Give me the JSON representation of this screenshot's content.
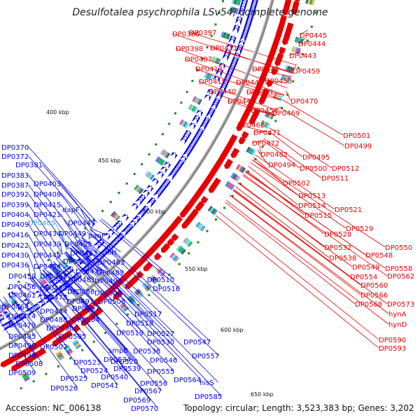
{
  "title": "Desulfotalea psychrophila LSv54, complete genome",
  "accession": "Accession: NC_006138",
  "summary": "Topology: circular; Length: 3,523,383 bp; Genes: 3,202",
  "colors": {
    "forward": "#e60000",
    "reverse": "#0000e6",
    "highlight": "#33aadd",
    "backbone": "#8a8a8a",
    "tick": "#1a8a1a"
  },
  "scale_marks": [
    "400 kbp",
    "450 kbp",
    "500 kbp",
    "550 kbp",
    "600 kbp",
    "650 kbp"
  ],
  "forward_labels": [
    "DP0386",
    "DP0397",
    "DP0398",
    "DP0411",
    "DP0407",
    "DP0417",
    "DP0418",
    "DP0440",
    "DP0445",
    "DP0444",
    "DP0443",
    "DP0442",
    "DP0459",
    "DP0441",
    "DP0453",
    "DP0451",
    "DP0446",
    "DP0470",
    "DP0458",
    "DP0469",
    "DP0462",
    "DP0471",
    "DP0472",
    "DP0482",
    "DP0501",
    "DP0499",
    "DP0495",
    "DP0494",
    "DP0500",
    "DP0512",
    "DP0511",
    "DP0502",
    "DP0513",
    "DP0514",
    "DP0521",
    "DP0515",
    "DP0529",
    "DP0528",
    "DP0550",
    "DP0532",
    "DP0548",
    "DP0538",
    "DP0549",
    "DP0558",
    "DP0554",
    "DP0562",
    "DP0560",
    "DP0566",
    "DP0568",
    "DP0573",
    "hynA",
    "hynD",
    "DP0590",
    "DP0593"
  ],
  "reverse_labels": [
    "DP0370",
    "DP0372",
    "DP0381",
    "DP0383",
    "DP0387",
    "DP0403",
    "DP0392",
    "DP0408",
    "DP0399",
    "DP0415",
    "dapF",
    "DP0404",
    "DP0421",
    "DP0409",
    "DP0405",
    "DP0447",
    "DP0416",
    "DP0434",
    "DP0449",
    "panF",
    "DP0422",
    "DP0439",
    "DP0455",
    "DP0430",
    "DP0448",
    "DP0463",
    "thiH",
    "DP0436",
    "DP0454",
    "DP0468",
    "DP0483",
    "DP0450",
    "DP0465",
    "DP0477",
    "DP0489",
    "DP0456",
    "DP0481",
    "DP0493",
    "DP0461",
    "DP0473",
    "DP0486",
    "DP0503",
    "DP0510",
    "DP0478",
    "DP0491",
    "DP0506",
    "DP0516",
    "DP0464",
    "DP0497",
    "DP0484",
    "DP0474",
    "DP0488",
    "DP0504",
    "DP0479",
    "DP0496",
    "DP0517",
    "DP0518",
    "DP0485",
    "DP0505",
    "DP0519",
    "DP0527",
    "DP0490",
    "DP0530",
    "DP0507",
    "smpB",
    "DP0536",
    "DP0498",
    "DP0547",
    "DP0508",
    "DP0523",
    "DP0534",
    "DP0546",
    "DP0520",
    "DP0539",
    "DP0557",
    "DP0509",
    "DP0524",
    "DP0555",
    "DP0525",
    "DP0540",
    "DP0556",
    "DP0564",
    "DP0526",
    "DP0541",
    "DP0567",
    "hisS",
    "DP0569",
    "DP0585",
    "DP0570"
  ],
  "highlight_labels": [
    "DP0405"
  ]
}
